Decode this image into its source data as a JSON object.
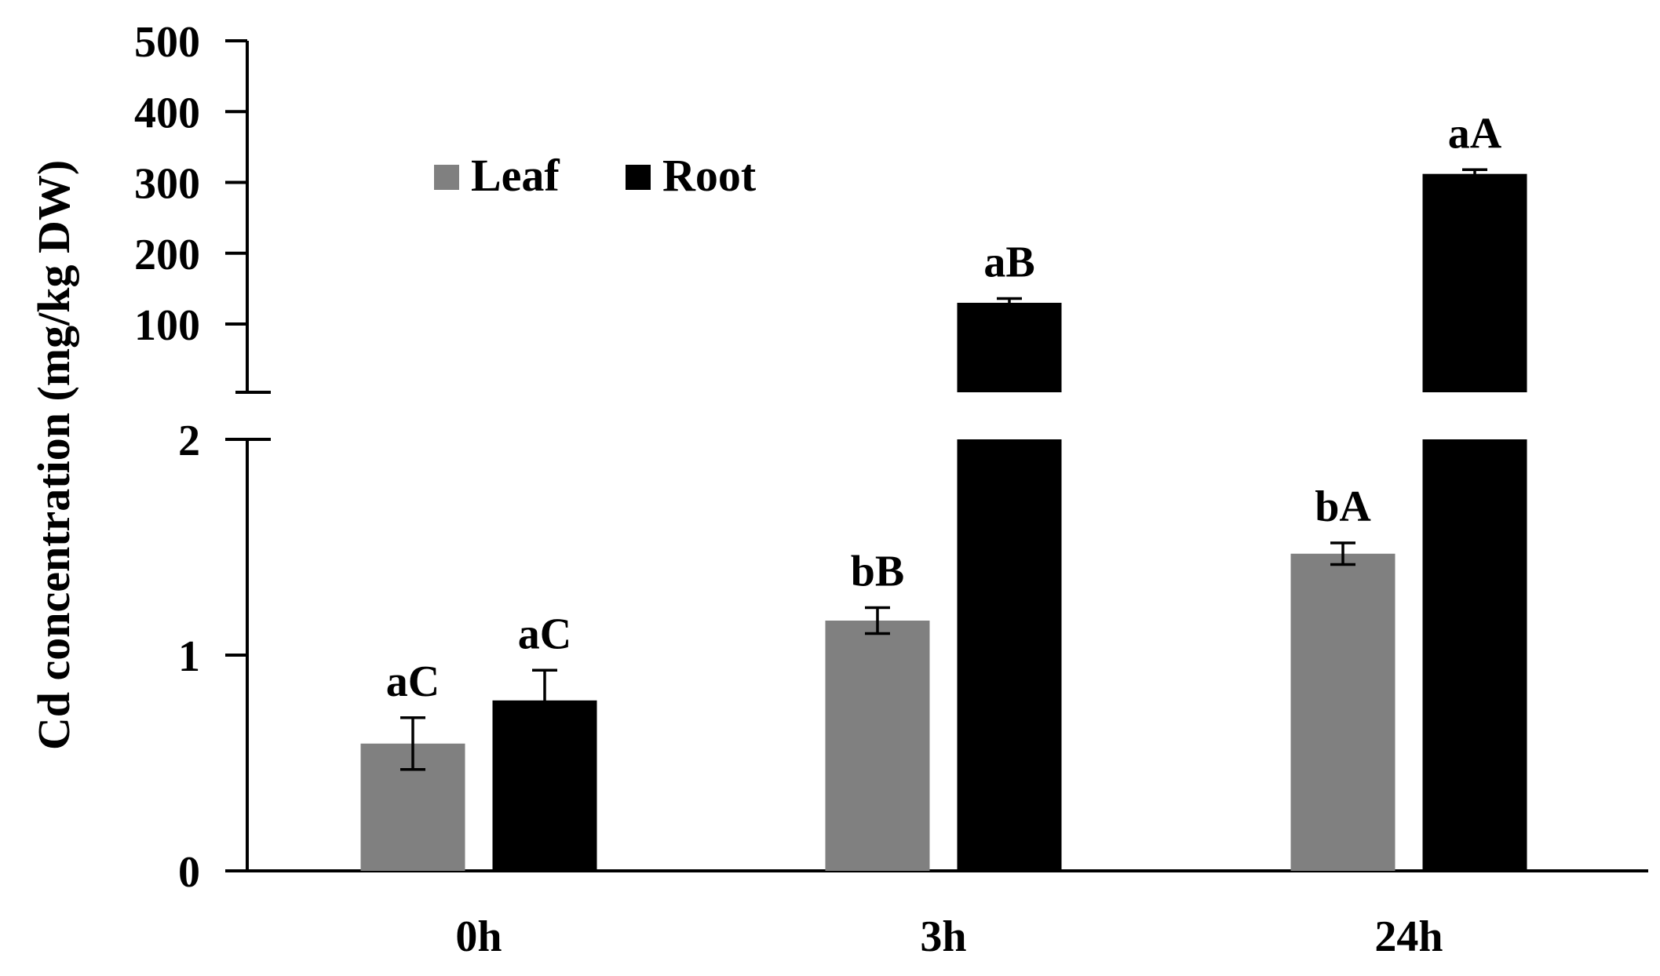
{
  "chart_data": {
    "type": "bar",
    "title": "",
    "xlabel": "",
    "ylabel": "Cd concentration (mg/kg DW)",
    "categories": [
      "0h",
      "3h",
      "24h"
    ],
    "y_axis": {
      "broken": true,
      "lower_segment": {
        "range": [
          0,
          2
        ],
        "ticks": [
          0,
          1,
          2
        ]
      },
      "upper_segment": {
        "range": [
          0,
          500
        ],
        "ticks": [
          100,
          200,
          300,
          400,
          500
        ]
      }
    },
    "series": [
      {
        "name": "Leaf",
        "color": "#808080",
        "values": [
          0.59,
          1.16,
          1.47
        ],
        "errors": [
          0.12,
          0.06,
          0.05
        ],
        "labels": [
          "aC",
          "bB",
          "bA"
        ]
      },
      {
        "name": "Root",
        "color": "#000000",
        "values": [
          0.79,
          130,
          312
        ],
        "errors": [
          0.14,
          6,
          6
        ],
        "labels": [
          "aC",
          "aB",
          "aA"
        ]
      }
    ],
    "legend": {
      "position": "top-left"
    },
    "grid": false
  }
}
